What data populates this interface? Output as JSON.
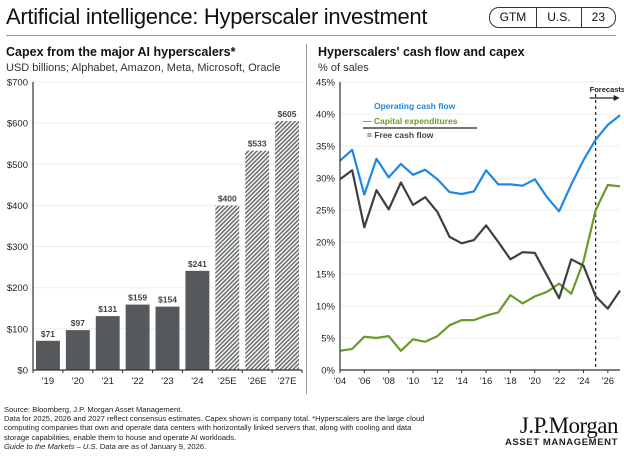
{
  "header": {
    "title": "Artificial intelligence: Hyperscaler investment",
    "badges": [
      "GTM",
      "U.S.",
      "23"
    ]
  },
  "chart_data": [
    {
      "type": "bar",
      "title": "Capex from the major AI hyperscalers*",
      "subtitle": "USD billions; Alphabet, Amazon, Meta, Microsoft, Oracle",
      "categories": [
        "'19",
        "'20",
        "'21",
        "'22",
        "'23",
        "'24",
        "'25E",
        "'26E",
        "'27E"
      ],
      "values": [
        71,
        97,
        131,
        159,
        154,
        241,
        400,
        533,
        605
      ],
      "data_labels": [
        "$71",
        "$97",
        "$131",
        "$159",
        "$154",
        "$241",
        "$400",
        "$533",
        "$605"
      ],
      "estimate": [
        false,
        false,
        false,
        false,
        false,
        false,
        true,
        true,
        true
      ],
      "ylim": [
        0,
        700
      ],
      "yticks": [
        0,
        100,
        200,
        300,
        400,
        500,
        600,
        700
      ],
      "ytick_labels": [
        "$0",
        "$100",
        "$200",
        "$300",
        "$400",
        "$500",
        "$600",
        "$700"
      ],
      "xlabel": "",
      "ylabel": "",
      "grid": true,
      "colors": {
        "actual": "#55595c",
        "estimate_hatch": "#6b6e70"
      }
    },
    {
      "type": "line",
      "title": "Hyperscalers' cash flow and capex",
      "subtitle": "% of sales",
      "x": [
        2004,
        2005,
        2006,
        2007,
        2008,
        2009,
        2010,
        2011,
        2012,
        2013,
        2014,
        2015,
        2016,
        2017,
        2018,
        2019,
        2020,
        2021,
        2022,
        2023,
        2024,
        2025,
        2026,
        2027
      ],
      "xticks": [
        2004,
        2006,
        2008,
        2010,
        2012,
        2014,
        2016,
        2018,
        2020,
        2022,
        2024,
        2026
      ],
      "xtick_labels": [
        "'04",
        "'06",
        "'08",
        "'10",
        "'12",
        "'14",
        "'16",
        "'18",
        "'20",
        "'22",
        "'24",
        "'26"
      ],
      "xlim": [
        2004,
        2027
      ],
      "ylim": [
        0,
        45
      ],
      "yticks": [
        0,
        5,
        10,
        15,
        20,
        25,
        30,
        35,
        40,
        45
      ],
      "ytick_labels": [
        "0%",
        "5%",
        "10%",
        "15%",
        "20%",
        "25%",
        "30%",
        "35%",
        "40%",
        "45%"
      ],
      "grid": true,
      "legend_position": "top-left",
      "forecast_start": 2025,
      "forecast_label": "Forecasts",
      "series": [
        {
          "name": "Operating cash flow",
          "color": "#1e88e5",
          "values": [
            32.7,
            34.4,
            27.4,
            33.0,
            30.1,
            32.2,
            30.5,
            31.3,
            29.8,
            27.8,
            27.5,
            27.9,
            31.2,
            29.0,
            29.0,
            28.8,
            29.8,
            27.0,
            24.8,
            29.0,
            32.8,
            36.0,
            38.3,
            39.8
          ]
        },
        {
          "name": "Capital expenditures",
          "color": "#6a9a2c",
          "values": [
            3.0,
            3.3,
            5.2,
            5.0,
            5.3,
            3.0,
            4.8,
            4.4,
            5.3,
            7.0,
            7.8,
            7.8,
            8.5,
            9.0,
            11.7,
            10.4,
            11.5,
            12.2,
            13.5,
            11.9,
            17.0,
            25.0,
            28.9,
            28.7
          ]
        },
        {
          "name": "Free cash flow",
          "color": "#3c3f41",
          "values": [
            29.8,
            31.2,
            22.3,
            28.1,
            25.1,
            29.3,
            25.8,
            27.0,
            24.7,
            20.8,
            19.8,
            20.3,
            22.6,
            20.0,
            17.3,
            18.4,
            18.3,
            14.8,
            11.2,
            17.3,
            16.3,
            11.5,
            9.6,
            12.4
          ]
        }
      ]
    }
  ],
  "footer": {
    "source": "Source: Bloomberg, J.P. Morgan Asset Management.",
    "note": "Data for 2025, 2026 and 2027 reflect consensus estimates. Capex shown is company total. *Hyperscalers are the large cloud computing companies that own and operate data centers with horizontally linked servers that, along with cooling and data storage capabilities, enable them to house and operate AI workloads.",
    "guide_italic": "Guide to the Markets – U.S.",
    "guide_rest": " Data are as of January 9, 2026."
  },
  "logo": {
    "main": "J.P.Morgan",
    "sub": "ASSET MANAGEMENT"
  }
}
